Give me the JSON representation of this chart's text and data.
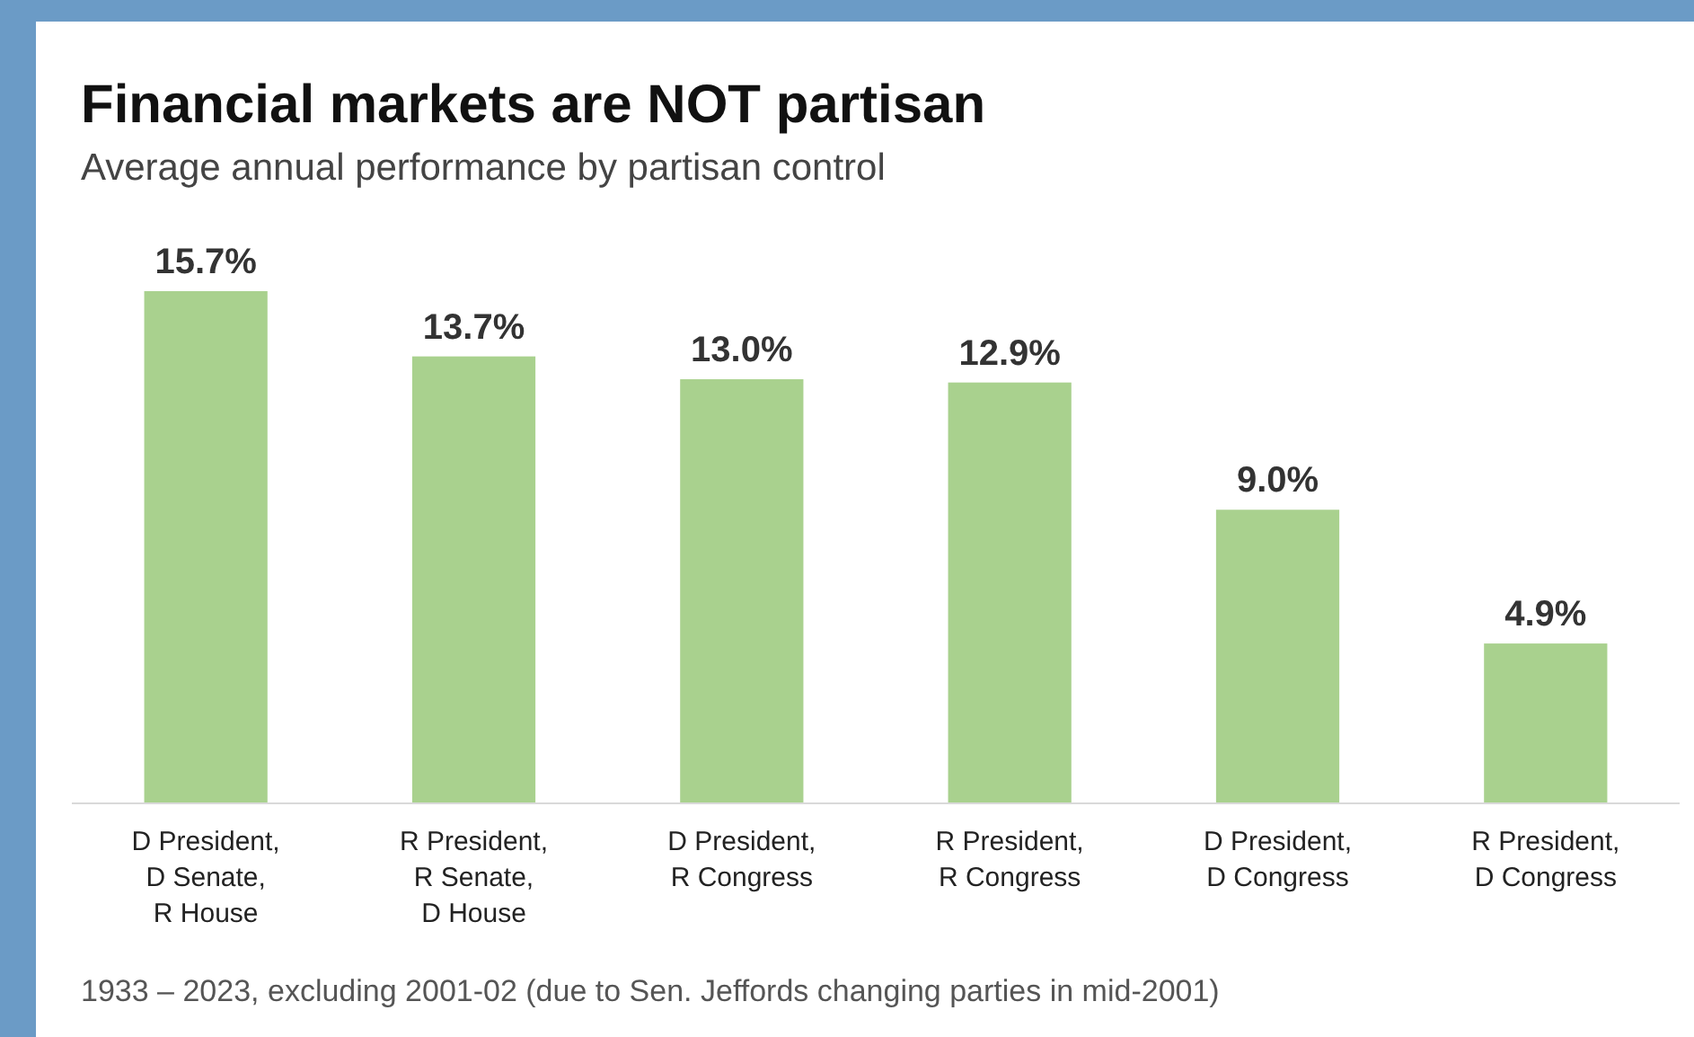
{
  "chart_data": {
    "type": "bar",
    "title": "Financial markets are NOT partisan",
    "subtitle": "Average annual performance by partisan control",
    "categories": [
      "D President,\nD Senate,\nR House",
      "R President,\nR Senate,\nD House",
      "D President,\nR Congress",
      "R President,\nR Congress",
      "D President,\nD Congress",
      "R President,\nD Congress"
    ],
    "values": [
      15.7,
      13.7,
      13.0,
      12.9,
      9.0,
      4.9
    ],
    "value_labels": [
      "15.7%",
      "13.7%",
      "13.0%",
      "12.9%",
      "9.0%",
      "4.9%"
    ],
    "color": "#a9d18e",
    "ylim": [
      0,
      15.7
    ],
    "tick_labels": "x",
    "annotations": [
      "1933 – 2023, excluding 2001-02 (due to Sen. Jeffords changing parties in mid-2001)"
    ]
  }
}
